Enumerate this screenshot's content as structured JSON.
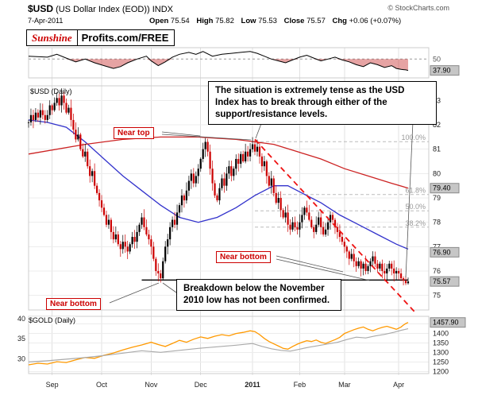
{
  "header": {
    "symbol": "$USD",
    "title_rest": "(US Dollar Index (EOD)) INDX",
    "copyright": "© StockCharts.com",
    "date": "7-Apr-2011",
    "quote_items": [
      {
        "label": "Open",
        "value": "75.54"
      },
      {
        "label": "High",
        "value": "75.82"
      },
      {
        "label": "Low",
        "value": "75.53"
      },
      {
        "label": "Close",
        "value": "75.57"
      },
      {
        "label": "Chg",
        "value": "+0.06 (+0.07%)"
      }
    ]
  },
  "branding": {
    "part1": "Sunshine",
    "part2": "Profits.com/FREE"
  },
  "annotations": {
    "tense_box": "The situation is extremely tense as the USD Index has to break through either of the support/resistance levels.",
    "breakdown_box": "Breakdown below the November 2010 low has not been confirmed.",
    "near_top": "Near top",
    "near_bottom_mid": "Near bottom",
    "near_bottom_left": "Near bottom"
  },
  "xaxis": {
    "months": [
      {
        "label": "Sep",
        "i": 10
      },
      {
        "label": "Oct",
        "i": 31
      },
      {
        "label": "Nov",
        "i": 52
      },
      {
        "label": "Dec",
        "i": 73
      },
      {
        "label": "2011",
        "i": 95,
        "bold": true
      },
      {
        "label": "Feb",
        "i": 115
      },
      {
        "label": "Mar",
        "i": 134
      },
      {
        "label": "Apr",
        "i": 157
      }
    ]
  },
  "chart_data": [
    {
      "panel": "indicator",
      "type": "line",
      "ylim": [
        30,
        62
      ],
      "midline": {
        "value": 50,
        "label": "50"
      },
      "last_box": {
        "label": "37.90",
        "value": 37.9
      },
      "series": [
        {
          "name": "indicator-line",
          "color": "#000000",
          "fill_below_midline": "rgba(200,50,50,0.45)",
          "points": [
            [
              0,
              53
            ],
            [
              8,
              52
            ],
            [
              12,
              55
            ],
            [
              16,
              51
            ],
            [
              20,
              47
            ],
            [
              24,
              50
            ],
            [
              28,
              46
            ],
            [
              32,
              43
            ],
            [
              36,
              40
            ],
            [
              39,
              42
            ],
            [
              42,
              46
            ],
            [
              46,
              50
            ],
            [
              50,
              53
            ],
            [
              52,
              48
            ],
            [
              55,
              43
            ],
            [
              58,
              47
            ],
            [
              61,
              52
            ],
            [
              64,
              55
            ],
            [
              68,
              57
            ],
            [
              71,
              55
            ],
            [
              74,
              58
            ],
            [
              78,
              53
            ],
            [
              82,
              55
            ],
            [
              86,
              56
            ],
            [
              90,
              57
            ],
            [
              94,
              58
            ],
            [
              97,
              56
            ],
            [
              100,
              53
            ],
            [
              103,
              50
            ],
            [
              106,
              48
            ],
            [
              109,
              46
            ],
            [
              112,
              49
            ],
            [
              115,
              52
            ],
            [
              118,
              54
            ],
            [
              121,
              51
            ],
            [
              124,
              48
            ],
            [
              127,
              50
            ],
            [
              130,
              52
            ],
            [
              133,
              49
            ],
            [
              136,
              47
            ],
            [
              139,
              44
            ],
            [
              142,
              42
            ],
            [
              145,
              46
            ],
            [
              148,
              44
            ],
            [
              151,
              41
            ],
            [
              154,
              43
            ],
            [
              156,
              40
            ],
            [
              158,
              39
            ],
            [
              160,
              38.5
            ],
            [
              161,
              37.9
            ]
          ]
        }
      ]
    },
    {
      "panel": "usd",
      "type": "candlestick",
      "title": "$USD (Daily)",
      "ylim": [
        74.4,
        83.6
      ],
      "yticks": [
        83,
        82,
        81,
        80,
        79,
        78,
        77,
        76,
        75
      ],
      "up_color": "#000000",
      "down_color": "#cc0000",
      "closes": [
        82.1,
        82.4,
        82.2,
        82.5,
        82.3,
        82.6,
        82.4,
        82.2,
        82.4,
        82.8,
        82.6,
        82.9,
        83.1,
        82.8,
        83.2,
        82.9,
        82.5,
        82.7,
        82.2,
        81.8,
        81.4,
        81.6,
        81.0,
        80.7,
        80.9,
        80.3,
        79.9,
        80.1,
        79.5,
        79.2,
        78.9,
        78.6,
        78.3,
        77.9,
        78.1,
        77.6,
        77.3,
        77.5,
        77.1,
        76.9,
        77.2,
        77.0,
        76.8,
        77.1,
        77.4,
        77.2,
        77.6,
        77.9,
        78.2,
        77.8,
        77.5,
        77.3,
        77.0,
        76.5,
        76.0,
        75.9,
        75.7,
        76.4,
        77.0,
        77.3,
        77.8,
        78.1,
        77.9,
        78.4,
        78.7,
        79.1,
        78.9,
        79.3,
        79.7,
        80.0,
        79.6,
        79.9,
        80.2,
        80.6,
        81.0,
        81.3,
        80.9,
        80.2,
        79.6,
        79.1,
        78.9,
        79.4,
        79.8,
        79.5,
        80.0,
        80.3,
        79.9,
        80.2,
        80.6,
        80.4,
        80.8,
        80.5,
        80.9,
        80.7,
        81.0,
        81.2,
        80.9,
        81.1,
        80.7,
        80.3,
        80.5,
        79.9,
        79.5,
        79.8,
        79.2,
        78.8,
        79.0,
        78.5,
        78.2,
        78.4,
        77.9,
        77.7,
        78.0,
        77.8,
        77.7,
        78.0,
        78.3,
        78.6,
        78.4,
        78.1,
        77.8,
        77.6,
        77.9,
        78.2,
        77.8,
        77.5,
        77.7,
        78.0,
        78.3,
        78.1,
        77.8,
        77.6,
        77.4,
        77.2,
        77.0,
        76.8,
        76.5,
        76.7,
        76.4,
        76.2,
        76.4,
        76.1,
        76.3,
        76.0,
        76.2,
        76.4,
        76.6,
        76.3,
        76.1,
        76.3,
        76.0,
        75.9,
        76.1,
        76.3,
        76.1,
        75.9,
        76.0,
        75.9,
        75.7,
        75.6,
        75.5,
        75.57
      ],
      "last_box": {
        "label": "75.57",
        "value": 75.57
      },
      "overlays": [
        {
          "name": "ma50",
          "type": "line",
          "color": "#3333cc",
          "width": 1.3,
          "last_box": {
            "label": "76.90",
            "value": 76.9
          },
          "points": [
            [
              0,
              82.2
            ],
            [
              8,
              82.1
            ],
            [
              16,
              81.9
            ],
            [
              24,
              81.3
            ],
            [
              32,
              80.6
            ],
            [
              40,
              79.9
            ],
            [
              48,
              79.3
            ],
            [
              56,
              78.7
            ],
            [
              64,
              78.2
            ],
            [
              72,
              78.0
            ],
            [
              80,
              78.2
            ],
            [
              88,
              78.6
            ],
            [
              96,
              79.1
            ],
            [
              104,
              79.5
            ],
            [
              110,
              79.5
            ],
            [
              116,
              79.2
            ],
            [
              124,
              78.8
            ],
            [
              132,
              78.3
            ],
            [
              140,
              77.9
            ],
            [
              148,
              77.5
            ],
            [
              156,
              77.1
            ],
            [
              161,
              76.9
            ]
          ]
        },
        {
          "name": "ma200",
          "type": "line",
          "color": "#cc2222",
          "width": 1.3,
          "last_box": {
            "label": "79.40",
            "value": 79.4
          },
          "points": [
            [
              0,
              80.8
            ],
            [
              24,
              81.2
            ],
            [
              40,
              81.4
            ],
            [
              56,
              81.5
            ],
            [
              72,
              81.5
            ],
            [
              88,
              81.4
            ],
            [
              104,
              81.2
            ],
            [
              114,
              80.9
            ],
            [
              124,
              80.6
            ],
            [
              134,
              80.2
            ],
            [
              144,
              79.9
            ],
            [
              154,
              79.6
            ],
            [
              161,
              79.4
            ]
          ]
        },
        {
          "name": "support-nov-low",
          "type": "line",
          "color": "#000000",
          "width": 1.4,
          "points": [
            [
              48,
              75.63
            ],
            [
              161,
              75.63
            ]
          ]
        },
        {
          "name": "declining-trendline",
          "type": "line",
          "color": "#ee1111",
          "width": 1.8,
          "dash": "7,5",
          "points": [
            [
              96,
              81.4
            ],
            [
              164,
              74.3
            ]
          ]
        }
      ],
      "fib_levels": {
        "x_start": 96,
        "levels": [
          {
            "label": "100.0%",
            "value": 81.31
          },
          {
            "label": "61.8%",
            "value": 79.14
          },
          {
            "label": "50.0%",
            "value": 78.47
          },
          {
            "label": "38.2%",
            "value": 77.8
          }
        ]
      }
    },
    {
      "panel": "gold",
      "type": "line",
      "title": "$GOLD (Daily)",
      "right_ylim": [
        1190,
        1490
      ],
      "right_ticks": [
        1400,
        1350,
        1300,
        1250,
        1200
      ],
      "grid_values": [
        1450,
        1400,
        1350,
        1300,
        1250,
        1200
      ],
      "left_ylim": [
        26.3,
        40.6
      ],
      "left_ticks": [
        40,
        35,
        30
      ],
      "last_box": {
        "label": "1457.90",
        "value": 1457.9
      },
      "series": [
        {
          "name": "gold-line",
          "color": "#ff9900",
          "axis": "right",
          "points": [
            [
              0,
              1236
            ],
            [
              4,
              1244
            ],
            [
              8,
              1240
            ],
            [
              12,
              1252
            ],
            [
              16,
              1248
            ],
            [
              20,
              1262
            ],
            [
              24,
              1274
            ],
            [
              28,
              1270
            ],
            [
              32,
              1286
            ],
            [
              36,
              1298
            ],
            [
              40,
              1314
            ],
            [
              44,
              1328
            ],
            [
              48,
              1340
            ],
            [
              52,
              1354
            ],
            [
              55,
              1342
            ],
            [
              58,
              1332
            ],
            [
              61,
              1348
            ],
            [
              64,
              1364
            ],
            [
              67,
              1354
            ],
            [
              70,
              1370
            ],
            [
              73,
              1382
            ],
            [
              76,
              1374
            ],
            [
              79,
              1386
            ],
            [
              82,
              1394
            ],
            [
              85,
              1388
            ],
            [
              88,
              1400
            ],
            [
              91,
              1406
            ],
            [
              94,
              1414
            ],
            [
              96,
              1410
            ],
            [
              98,
              1394
            ],
            [
              100,
              1374
            ],
            [
              102,
              1358
            ],
            [
              104,
              1346
            ],
            [
              106,
              1334
            ],
            [
              108,
              1322
            ],
            [
              110,
              1318
            ],
            [
              112,
              1332
            ],
            [
              114,
              1344
            ],
            [
              116,
              1354
            ],
            [
              118,
              1362
            ],
            [
              120,
              1358
            ],
            [
              122,
              1366
            ],
            [
              124,
              1354
            ],
            [
              126,
              1348
            ],
            [
              128,
              1358
            ],
            [
              130,
              1368
            ],
            [
              132,
              1380
            ],
            [
              134,
              1400
            ],
            [
              136,
              1410
            ],
            [
              138,
              1420
            ],
            [
              140,
              1428
            ],
            [
              142,
              1434
            ],
            [
              144,
              1422
            ],
            [
              146,
              1414
            ],
            [
              148,
              1424
            ],
            [
              150,
              1432
            ],
            [
              152,
              1438
            ],
            [
              154,
              1430
            ],
            [
              156,
              1422
            ],
            [
              158,
              1434
            ],
            [
              159,
              1444
            ],
            [
              160,
              1452
            ],
            [
              161,
              1457.9
            ]
          ]
        },
        {
          "name": "gray-line",
          "color": "#aaaaaa",
          "axis": "left",
          "points": [
            [
              0,
              29.2
            ],
            [
              8,
              29.5
            ],
            [
              16,
              29.9
            ],
            [
              24,
              30.3
            ],
            [
              32,
              30.8
            ],
            [
              40,
              31.4
            ],
            [
              48,
              32.0
            ],
            [
              56,
              31.6
            ],
            [
              64,
              32.1
            ],
            [
              72,
              32.6
            ],
            [
              80,
              33.0
            ],
            [
              88,
              33.4
            ],
            [
              95,
              33.8
            ],
            [
              99,
              33.1
            ],
            [
              103,
              32.5
            ],
            [
              107,
              32.1
            ],
            [
              111,
              31.9
            ],
            [
              115,
              32.4
            ],
            [
              119,
              32.9
            ],
            [
              123,
              33.3
            ],
            [
              127,
              33.7
            ],
            [
              131,
              34.1
            ],
            [
              135,
              34.8
            ],
            [
              139,
              35.4
            ],
            [
              143,
              35.2
            ],
            [
              147,
              35.7
            ],
            [
              151,
              36.1
            ],
            [
              155,
              36.6
            ],
            [
              158,
              37.1
            ],
            [
              161,
              37.5
            ]
          ]
        }
      ]
    }
  ]
}
